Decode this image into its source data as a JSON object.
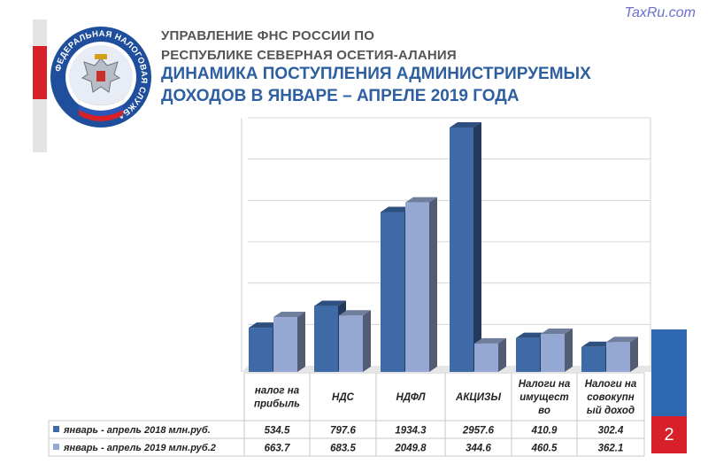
{
  "header": {
    "org_line1": "УПРАВЛЕНИЕ ФНС РОССИИ ПО",
    "org_line2": "РЕСПУБЛИКЕ СЕВЕРНАЯ ОСЕТИЯ-АЛАНИЯ",
    "title_line1": "ДИНАМИКА ПОСТУПЛЕНИЯ АДМИНИСТРИРУЕМЫХ",
    "title_line2": "ДОХОДОВ  В  ЯНВАРЕ – АПРЕЛЕ 2019 ГОДА",
    "emblem_text": "ФЕДЕРАЛЬНАЯ НАЛОГОВАЯ СЛУЖБА",
    "watermark": "TaxRu.com",
    "slide_number": "2"
  },
  "colors": {
    "series1": "#3f6aa8",
    "series2": "#95a8d3",
    "title": "#2e5fa1",
    "accent_red": "#d8202a",
    "accent_blue": "#2e67b2"
  },
  "chart_data": {
    "type": "bar",
    "title": "",
    "ylim": [
      0,
      3000
    ],
    "grid": true,
    "legend": "table-left",
    "categories": [
      [
        "налог на",
        "прибыль"
      ],
      [
        "НДС"
      ],
      [
        "НДФЛ"
      ],
      [
        "АКЦИЗЫ"
      ],
      [
        "Налоги на",
        "имущест",
        "во"
      ],
      [
        "Налоги на",
        "совокупн",
        "ый доход"
      ]
    ],
    "series": [
      {
        "name": "январь - апрель 2018 млн.руб.",
        "values": [
          534.5,
          797.6,
          1934.3,
          2957.6,
          410.9,
          302.4
        ],
        "labels": [
          "534.5",
          "797.6",
          "1934.3",
          "2957.6",
          "410.9",
          "302.4"
        ]
      },
      {
        "name": "январь - апрель  2019 млн.руб.2",
        "values": [
          663.7,
          683.5,
          2049.8,
          344.6,
          460.5,
          362.1
        ],
        "labels": [
          "663.7",
          "683.5",
          "2049.8",
          "344.6",
          "460.5",
          "362.1"
        ]
      }
    ]
  }
}
